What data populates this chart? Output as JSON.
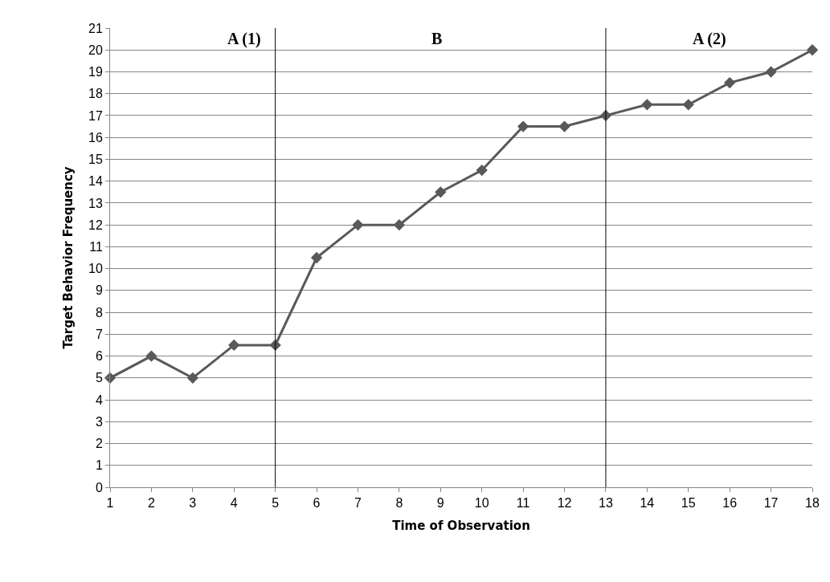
{
  "chart_data": {
    "type": "line",
    "xlabel": "Time of Observation",
    "ylabel": "Target Behavior Frequency",
    "x": [
      1,
      2,
      3,
      4,
      5,
      6,
      7,
      8,
      9,
      10,
      11,
      12,
      13,
      14,
      15,
      16,
      17,
      18
    ],
    "series": [
      {
        "color": "#595959",
        "values": [
          5,
          6,
          5,
          6.5,
          6.5,
          10.5,
          12,
          12,
          13.5,
          14.5,
          16.5,
          16.5,
          17,
          17.5,
          17.5,
          18.5,
          19,
          20
        ]
      }
    ],
    "xlim": [
      1,
      18
    ],
    "xticks": [
      1,
      2,
      3,
      4,
      5,
      6,
      7,
      8,
      9,
      10,
      11,
      12,
      13,
      14,
      15,
      16,
      17,
      18
    ],
    "ylim": [
      0,
      21
    ],
    "yticks": [
      0,
      1,
      2,
      3,
      4,
      5,
      6,
      7,
      8,
      9,
      10,
      11,
      12,
      13,
      14,
      15,
      16,
      17,
      18,
      19,
      20,
      21
    ],
    "grid": "y",
    "marker": "diamond",
    "line_style": "solid",
    "legend": false,
    "ref_lines": [
      {
        "axis": "x",
        "value": 5,
        "color": "#000000"
      },
      {
        "axis": "x",
        "value": 13,
        "color": "#000000"
      }
    ],
    "annotations": [
      "A (1)",
      "B",
      "A (2)"
    ]
  }
}
